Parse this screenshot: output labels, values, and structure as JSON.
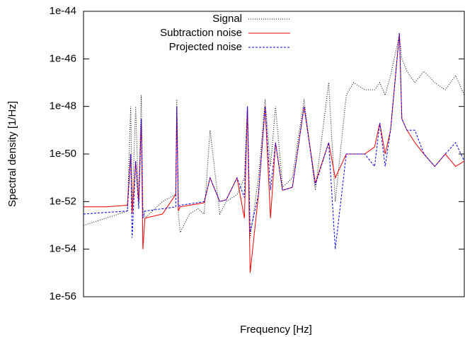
{
  "chart_data": {
    "type": "line",
    "xlabel": "Frequency [Hz]",
    "ylabel": "Spectral density [1/Hz]",
    "xlog": true,
    "ylog": true,
    "xlim": [
      1,
      100
    ],
    "ylim": [
      1e-56,
      1e-44
    ],
    "yticks": [
      1e-56,
      1e-54,
      1e-52,
      1e-50,
      1e-48,
      1e-46,
      1e-44
    ],
    "legend": "top-right",
    "x": [
      1,
      1.31,
      1.7,
      1.77,
      1.8,
      1.88,
      1.95,
      2.01,
      2.05,
      2.1,
      2.6,
      3.05,
      3.09,
      3.15,
      3.22,
      3.6,
      3.99,
      4.3,
      4.62,
      5.2,
      5.62,
      6.4,
      7.0,
      7.26,
      7.5,
      8.3,
      8.99,
      9.6,
      10.2,
      11.1,
      12.5,
      14.4,
      16.5,
      19.4,
      21,
      24.0,
      26.2,
      30,
      33.8,
      36,
      38.4,
      41,
      45.6,
      47,
      50,
      55,
      61.4,
      70,
      79.4,
      90,
      100
    ],
    "series": [
      {
        "name": "Signal",
        "color": "#000000",
        "dash": "1,2",
        "values": [
          1e-53,
          2e-53,
          4e-53,
          1e-48,
          5e-53,
          1e-48,
          8e-53,
          3e-48,
          6e-53,
          2e-53,
          1e-52,
          2e-52,
          2e-48,
          3e-53,
          5e-54,
          3e-53,
          5e-53,
          3e-53,
          1e-49,
          3e-53,
          1e-52,
          2e-52,
          1e-51,
          1e-48,
          3e-54,
          1e-51,
          2e-48,
          3e-51,
          1e-48,
          4e-52,
          1e-51,
          2e-48,
          3e-52,
          1e-47,
          1e-52,
          3e-48,
          1e-47,
          5e-48,
          5e-48,
          1e-47,
          3e-48,
          2e-47,
          1e-45,
          1e-46,
          3e-47,
          1e-47,
          3e-47,
          1e-47,
          5e-48,
          2e-47,
          3e-48
        ]
      },
      {
        "name": "Subtraction noise",
        "color": "#ff0000",
        "dash": "none",
        "values": [
          6e-53,
          6e-53,
          7e-53,
          1e-50,
          3e-53,
          5e-51,
          1e-52,
          3e-49,
          1e-54,
          2e-53,
          3e-53,
          2e-52,
          1e-48,
          4e-53,
          6e-53,
          7e-53,
          8e-53,
          9e-53,
          1e-51,
          1e-52,
          1.2e-52,
          1e-51,
          2e-53,
          1e-48,
          1e-55,
          2e-52,
          1e-48,
          2e-53,
          3e-50,
          3e-52,
          4e-52,
          1e-48,
          6e-52,
          3e-50,
          1e-51,
          1e-50,
          1e-50,
          1e-50,
          2e-50,
          2e-49,
          1e-50,
          1e-49,
          1.2e-45,
          3e-49,
          1e-49,
          3e-50,
          1e-50,
          3e-51,
          1e-50,
          3e-51,
          5e-51
        ]
      },
      {
        "name": "Projected noise",
        "color": "#0000ff",
        "dash": "3,2",
        "values": [
          3e-53,
          3.5e-53,
          4e-53,
          1e-50,
          3e-54,
          5e-51,
          5e-53,
          3e-49,
          2e-53,
          4e-53,
          5e-53,
          6e-53,
          1e-48,
          6e-53,
          7e-53,
          8e-53,
          9e-53,
          1e-52,
          1e-51,
          1e-52,
          1.2e-52,
          1e-51,
          1.5e-52,
          1e-48,
          5e-54,
          2e-52,
          1e-48,
          3e-52,
          3e-50,
          3e-52,
          4e-52,
          1e-48,
          5e-52,
          3e-50,
          1e-54,
          1e-50,
          1e-50,
          1e-50,
          3e-51,
          2e-49,
          3e-51,
          1e-49,
          1.2e-45,
          3e-49,
          1e-49,
          1e-49,
          1e-50,
          3e-51,
          1e-50,
          3e-50,
          5e-51
        ]
      }
    ]
  }
}
